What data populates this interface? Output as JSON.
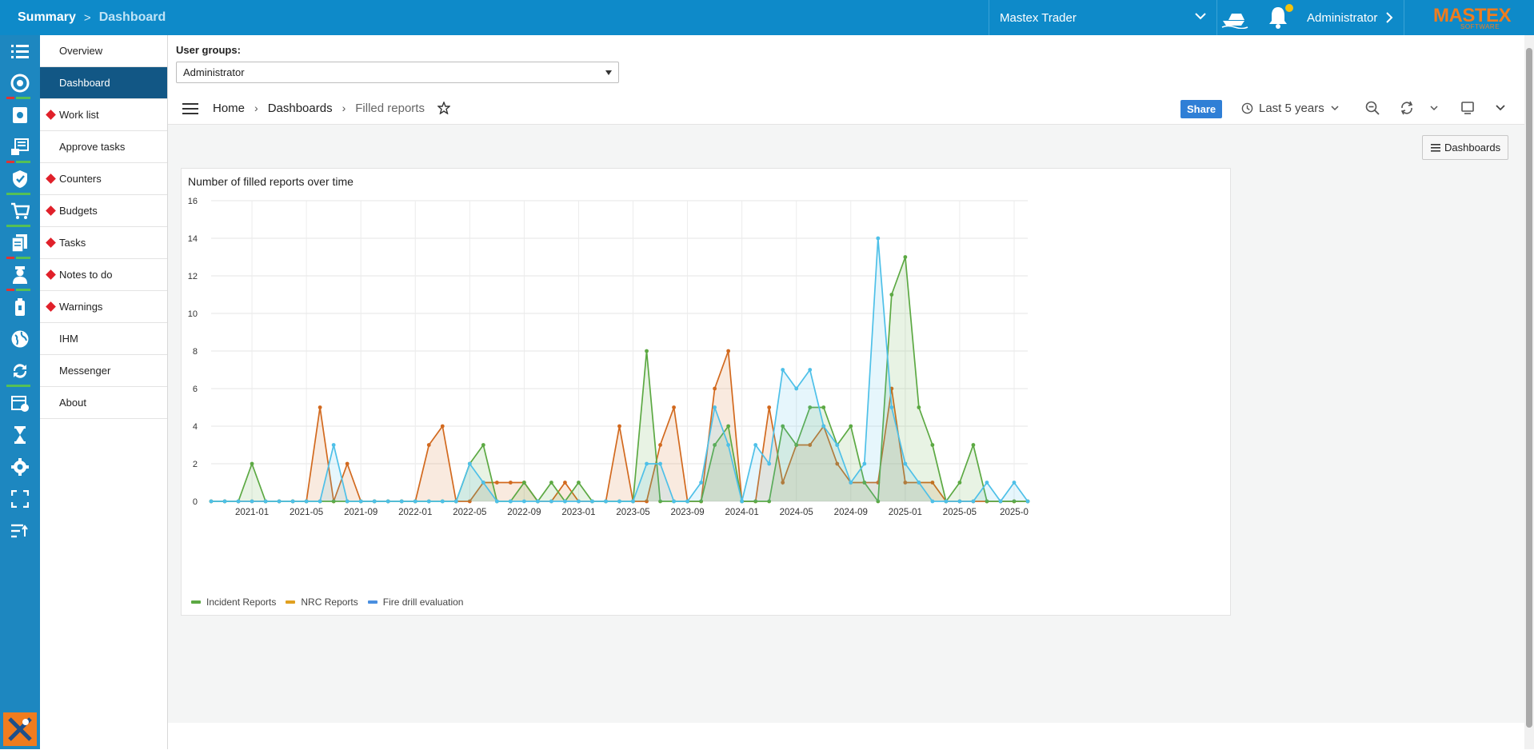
{
  "topbar": {
    "breadcrumb": [
      "Summary",
      "Dashboard"
    ],
    "vessel": "Mastex Trader",
    "user": "Administrator",
    "logo": "MASTEX",
    "logo_sub": "SOFTWARE",
    "brand_color": "#0e8ac9"
  },
  "side_menu": {
    "items": [
      {
        "label": "Overview",
        "marker": false,
        "active": false
      },
      {
        "label": "Dashboard",
        "marker": false,
        "active": true
      },
      {
        "label": "Work list",
        "marker": true,
        "active": false
      },
      {
        "label": "Approve tasks",
        "marker": false,
        "active": false
      },
      {
        "label": "Counters",
        "marker": true,
        "active": false
      },
      {
        "label": "Budgets",
        "marker": true,
        "active": false
      },
      {
        "label": "Tasks",
        "marker": true,
        "active": false
      },
      {
        "label": "Notes to do",
        "marker": true,
        "active": false
      },
      {
        "label": "Warnings",
        "marker": true,
        "active": false
      },
      {
        "label": "IHM",
        "marker": false,
        "active": false
      },
      {
        "label": "Messenger",
        "marker": false,
        "active": false
      },
      {
        "label": "About",
        "marker": false,
        "active": false
      }
    ]
  },
  "rail_icons": [
    "list-icon",
    "dashboard-icon",
    "maintenance-icon",
    "documents-icon",
    "safety-shield-icon",
    "purchase-cart-icon",
    "reports-icon",
    "crew-icon",
    "ship-stores-icon",
    "globe-icon",
    "sync-icon",
    "calendar-icon",
    "hourglass-icon",
    "settings-icon",
    "fullscreen-icon",
    "sort-icon"
  ],
  "user_groups": {
    "label": "User groups:",
    "selected": "Administrator"
  },
  "grafana": {
    "breadcrumb": [
      "Home",
      "Dashboards",
      "Filled reports"
    ],
    "share_label": "Share",
    "time_range": "Last 5 years",
    "dashboards_button": "Dashboards"
  },
  "chart_data": {
    "type": "area",
    "title": "Number of filled reports over time",
    "ylim": [
      0,
      16
    ],
    "yticks": [
      0,
      2,
      4,
      6,
      8,
      10,
      12,
      14,
      16
    ],
    "xtick_labels": [
      "2021-01",
      "2021-05",
      "2021-09",
      "2022-01",
      "2022-05",
      "2022-09",
      "2023-01",
      "2023-05",
      "2023-09",
      "2024-01",
      "2024-05",
      "2024-09",
      "2025-01",
      "2025-05",
      "2025-0"
    ],
    "xtick_month_index": [
      3,
      7,
      11,
      15,
      19,
      23,
      27,
      31,
      35,
      39,
      43,
      47,
      51,
      55,
      59
    ],
    "month_count": 61,
    "start_month": "2020-10",
    "series": [
      {
        "name": "Incident Reports",
        "color": "#5ca943",
        "values": [
          0,
          0,
          0,
          2,
          0,
          0,
          0,
          0,
          0,
          0,
          0,
          0,
          0,
          0,
          0,
          0,
          0,
          0,
          0,
          2,
          3,
          0,
          0,
          1,
          0,
          1,
          0,
          1,
          0,
          0,
          0,
          0,
          8,
          0,
          0,
          0,
          0,
          3,
          4,
          0,
          0,
          0,
          4,
          3,
          5,
          5,
          3,
          4,
          1,
          0,
          11,
          13,
          5,
          3,
          0,
          1,
          3,
          0,
          0,
          0,
          0
        ]
      },
      {
        "name": "NRC Reports",
        "color": "#e0a020",
        "values": [
          0,
          0,
          0,
          0,
          0,
          0,
          0,
          0,
          5,
          0,
          2,
          0,
          0,
          0,
          0,
          0,
          3,
          4,
          0,
          0,
          1,
          1,
          1,
          1,
          0,
          0,
          1,
          0,
          0,
          0,
          4,
          0,
          0,
          3,
          5,
          0,
          0,
          6,
          8,
          0,
          0,
          5,
          1,
          3,
          3,
          4,
          2,
          1,
          1,
          1,
          6,
          1,
          1,
          1,
          0,
          0,
          0,
          0,
          0,
          0,
          0
        ]
      },
      {
        "name": "Fire drill evaluation",
        "color": "#4a8fe0",
        "values": [
          0,
          0,
          0,
          0,
          0,
          0,
          0,
          0,
          0,
          3,
          0,
          0,
          0,
          0,
          0,
          0,
          0,
          0,
          0,
          2,
          1,
          0,
          0,
          0,
          0,
          0,
          0,
          0,
          0,
          0,
          0,
          0,
          2,
          2,
          0,
          0,
          1,
          5,
          3,
          0,
          3,
          2,
          7,
          6,
          7,
          4,
          3,
          1,
          2,
          14,
          5,
          2,
          1,
          0,
          0,
          0,
          0,
          1,
          0,
          1,
          0
        ]
      }
    ]
  }
}
